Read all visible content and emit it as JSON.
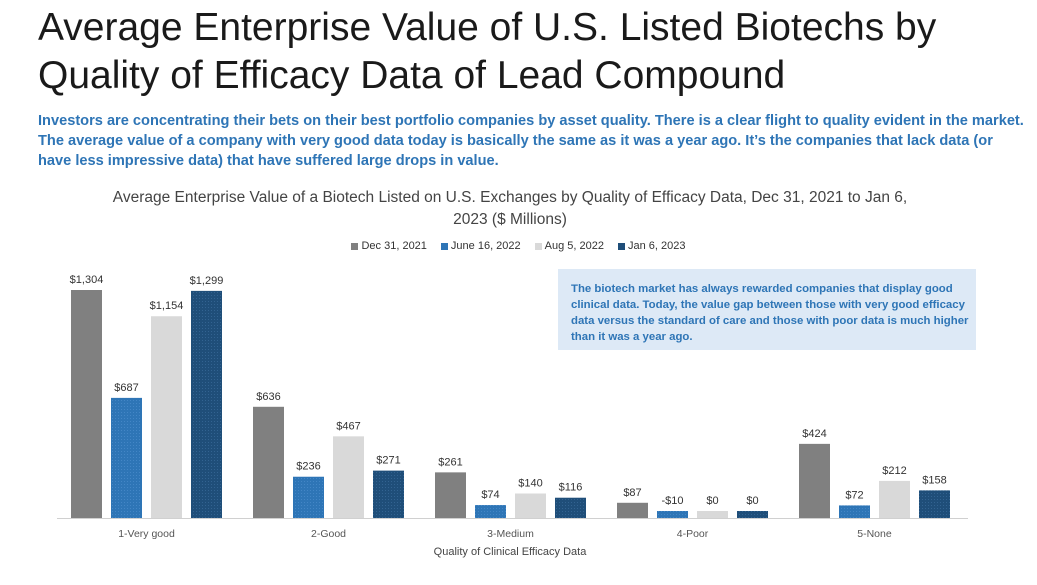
{
  "slide": {
    "title": "Average Enterprise Value of U.S. Listed Biotechs by Quality of Efficacy Data of Lead Compound",
    "subtitle": "Investors are concentrating their bets on their best portfolio companies by asset quality. There is a clear flight to quality evident in the market. The average value of a company with very good data today is basically the same as it was a year ago. It’s the companies that lack data (or have less impressive data) that have suffered large drops in value.",
    "callout": "The biotech market has always rewarded companies that display good clinical data. Today, the value gap between those with very good efficacy data versus the standard of care and those with poor data is much higher than it was a year ago."
  },
  "chart_data": {
    "type": "bar",
    "title": "Average Enterprise Value of a Biotech Listed on U.S. Exchanges by Quality of Efficacy Data, Dec 31, 2021 to Jan 6, 2023 ($ Millions)",
    "xlabel": "Quality of Clinical Efficacy Data",
    "ylabel": "",
    "ylim": [
      0,
      1304
    ],
    "grid": false,
    "legend_position": "top",
    "categories": [
      "1-Very good",
      "2-Good",
      "3-Medium",
      "4-Poor",
      "5-None"
    ],
    "series": [
      {
        "name": "Dec 31, 2021",
        "color": "#808080",
        "values": [
          1304,
          636,
          261,
          87,
          424
        ],
        "labels": [
          "$1,304",
          "$636",
          "$261",
          "$87",
          "$424"
        ]
      },
      {
        "name": "June 16, 2022",
        "color": "#2e75b6",
        "values": [
          687,
          236,
          74,
          -10,
          72
        ],
        "labels": [
          "$687",
          "$236",
          "$74",
          "-$10",
          "$72"
        ]
      },
      {
        "name": "Aug 5, 2022",
        "color": "#d9d9d9",
        "values": [
          1154,
          467,
          140,
          0,
          212
        ],
        "labels": [
          "$1,154",
          "$467",
          "$140",
          "$0",
          "$212"
        ]
      },
      {
        "name": "Jan 6, 2023",
        "color": "#1f4e79",
        "values": [
          1299,
          271,
          116,
          0,
          158
        ],
        "labels": [
          "$1,299",
          "$271",
          "$116",
          "$0",
          "$158"
        ]
      }
    ]
  }
}
